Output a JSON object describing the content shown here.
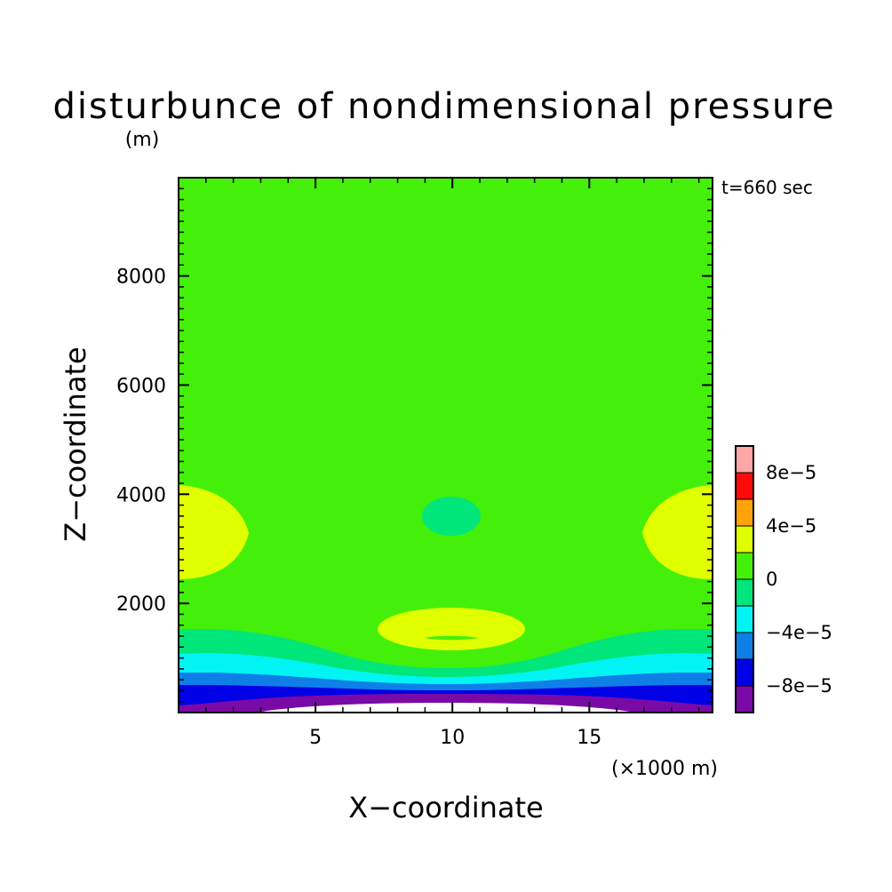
{
  "chart_data": {
    "type": "heatmap",
    "plot_kind": "filled-contour",
    "title": "disturbunce of nondimensional pressure",
    "y_unit": "(m)",
    "x_unit": "(×1000 m)",
    "xlabel": "X−coordinate",
    "ylabel": "Z−coordinate",
    "time_label": "t=660 sec",
    "xlim": [
      0,
      19.5
    ],
    "ylim": [
      0,
      9800
    ],
    "x_ticks": [
      5,
      10,
      15
    ],
    "x_tick_labels": [
      "5",
      "10",
      "15"
    ],
    "y_ticks": [
      2000,
      4000,
      6000,
      8000
    ],
    "y_tick_labels": [
      "2000",
      "4000",
      "6000",
      "8000"
    ],
    "x_minor_step": 1,
    "y_minor_step": 200,
    "colorbar": {
      "levels": [
        -0.0001,
        -8e-05,
        -6e-05,
        -4e-05,
        -2e-05,
        0,
        2e-05,
        4e-05,
        6e-05,
        8e-05,
        0.0001
      ],
      "colors": [
        "#7a0aa6",
        "#0000e6",
        "#0f7fe8",
        "#00f4f4",
        "#00e67a",
        "#44f00a",
        "#e0ff00",
        "#ffa30a",
        "#ff0a0a",
        "#ffa6a6"
      ],
      "label_values": [
        "-8e-5",
        "-4e-5",
        "0",
        "4e-5",
        "8e-5"
      ],
      "tick_labels": [
        "−8e−5",
        "−4e−5",
        "0",
        "4e−5",
        "8e−5"
      ]
    },
    "contour_regions": [
      {
        "level_range": [
          -0.00012,
          -0.0001
        ],
        "color": "#ffffff",
        "description": "min near surface centre"
      },
      {
        "level_range": [
          -0.0001,
          -8e-05
        ],
        "color": "#7a0aa6"
      },
      {
        "level_range": [
          -8e-05,
          -6e-05
        ],
        "color": "#0000e6"
      },
      {
        "level_range": [
          -6e-05,
          -4e-05
        ],
        "color": "#0f7fe8"
      },
      {
        "level_range": [
          -4e-05,
          -2e-05
        ],
        "color": "#00f4f4"
      },
      {
        "level_range": [
          -2e-05,
          0
        ],
        "color": "#00e67a"
      },
      {
        "level_range": [
          0,
          2e-05
        ],
        "color": "#44f00a"
      },
      {
        "level_range": [
          2e-05,
          4e-05
        ],
        "color": "#e0ff00"
      }
    ]
  }
}
